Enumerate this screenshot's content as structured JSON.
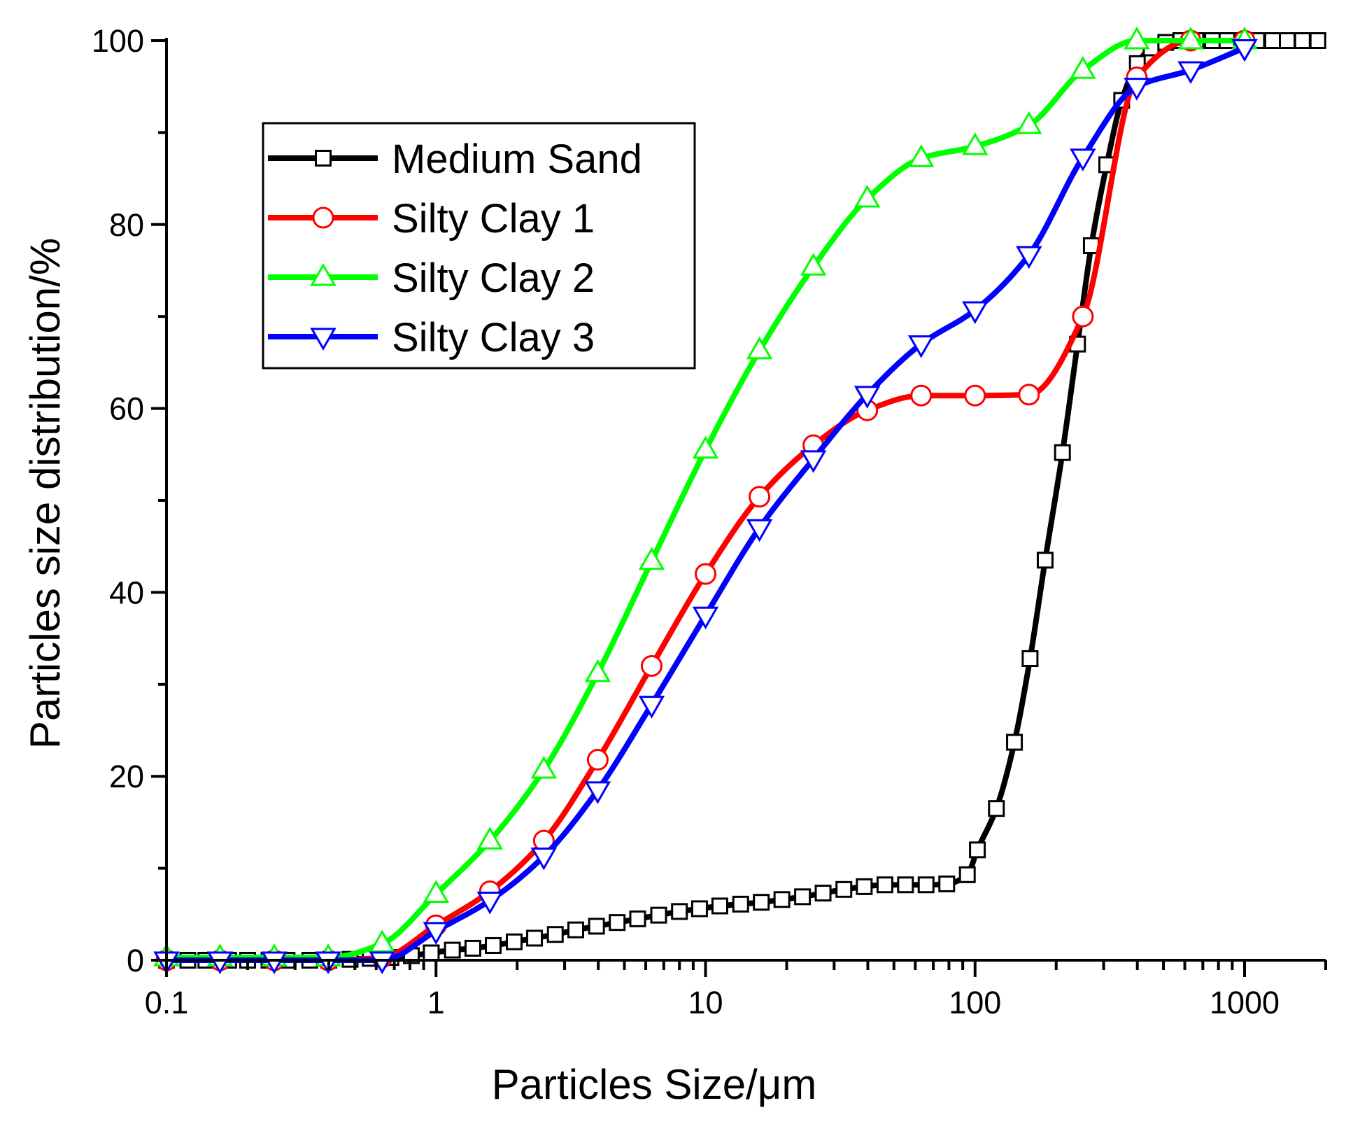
{
  "chart_data": {
    "type": "line",
    "title": "",
    "xlabel": "Particles Size/μm",
    "ylabel": "Particles size distribution/%",
    "x_scale": "log",
    "xlim": [
      0.1,
      2000
    ],
    "ylim": [
      0,
      100
    ],
    "x_ticks": [
      0.1,
      1,
      10,
      100,
      1000
    ],
    "x_tick_labels": [
      "0.1",
      "1",
      "10",
      "100",
      "1000"
    ],
    "y_ticks": [
      0,
      20,
      40,
      60,
      80,
      100
    ],
    "y_tick_labels": [
      "0",
      "20",
      "40",
      "60",
      "80",
      "100"
    ],
    "legend_position": "top-left",
    "grid": false,
    "series": [
      {
        "name": "Medium Sand",
        "color": "#000000",
        "marker": "square",
        "points": [
          [
            0.1,
            0
          ],
          [
            0.12,
            0
          ],
          [
            0.14,
            0
          ],
          [
            0.17,
            0
          ],
          [
            0.2,
            0
          ],
          [
            0.24,
            0
          ],
          [
            0.28,
            0
          ],
          [
            0.34,
            0
          ],
          [
            0.4,
            0
          ],
          [
            0.48,
            0.1
          ],
          [
            0.57,
            0.2
          ],
          [
            0.68,
            0.3
          ],
          [
            0.81,
            0.5
          ],
          [
            0.96,
            0.8
          ],
          [
            1.15,
            1.1
          ],
          [
            1.37,
            1.3
          ],
          [
            1.63,
            1.6
          ],
          [
            1.95,
            2.0
          ],
          [
            2.32,
            2.4
          ],
          [
            2.77,
            2.8
          ],
          [
            3.3,
            3.3
          ],
          [
            3.94,
            3.7
          ],
          [
            4.7,
            4.1
          ],
          [
            5.6,
            4.5
          ],
          [
            6.7,
            4.9
          ],
          [
            8.0,
            5.3
          ],
          [
            9.5,
            5.6
          ],
          [
            11.3,
            5.9
          ],
          [
            13.5,
            6.1
          ],
          [
            16.1,
            6.3
          ],
          [
            19.2,
            6.6
          ],
          [
            22.9,
            6.9
          ],
          [
            27.3,
            7.3
          ],
          [
            32.6,
            7.7
          ],
          [
            38.8,
            8.0
          ],
          [
            46.3,
            8.2
          ],
          [
            55.2,
            8.2
          ],
          [
            65.8,
            8.2
          ],
          [
            78.5,
            8.3
          ],
          [
            93.6,
            9.3
          ],
          [
            102,
            12
          ],
          [
            120,
            16.5
          ],
          [
            140,
            23.7
          ],
          [
            160,
            32.8
          ],
          [
            182,
            43.5
          ],
          [
            211,
            55.2
          ],
          [
            240,
            67
          ],
          [
            270,
            77.7
          ],
          [
            308,
            86.5
          ],
          [
            350,
            93.5
          ],
          [
            400,
            97.5
          ],
          [
            450,
            99.2
          ],
          [
            510,
            99.8
          ],
          [
            580,
            100
          ],
          [
            660,
            100
          ],
          [
            760,
            100
          ],
          [
            860,
            100
          ],
          [
            980,
            100
          ],
          [
            1110,
            100
          ],
          [
            1270,
            100
          ],
          [
            1440,
            100
          ],
          [
            1640,
            100
          ],
          [
            1870,
            100
          ]
        ]
      },
      {
        "name": "Silty Clay 1",
        "color": "#ff0000",
        "marker": "circle",
        "points": [
          [
            0.1,
            0
          ],
          [
            0.158,
            0
          ],
          [
            0.251,
            0
          ],
          [
            0.398,
            0
          ],
          [
            0.631,
            0.3
          ],
          [
            1,
            3.8
          ],
          [
            1.585,
            7.5
          ],
          [
            2.512,
            13
          ],
          [
            3.981,
            21.8
          ],
          [
            6.31,
            32
          ],
          [
            10,
            42
          ],
          [
            15.85,
            50.4
          ],
          [
            25.12,
            56
          ],
          [
            39.81,
            59.8
          ],
          [
            63.1,
            61.4
          ],
          [
            100,
            61.4
          ],
          [
            158.5,
            61.5
          ],
          [
            251.2,
            70
          ],
          [
            398.1,
            96
          ],
          [
            631,
            100
          ],
          [
            1000,
            100
          ]
        ]
      },
      {
        "name": "Silty Clay 2",
        "color": "#00ff00",
        "marker": "triangle-up",
        "points": [
          [
            0.1,
            0.3
          ],
          [
            0.158,
            0.3
          ],
          [
            0.251,
            0.3
          ],
          [
            0.398,
            0.3
          ],
          [
            0.631,
            1.8
          ],
          [
            1,
            7.2
          ],
          [
            1.585,
            13
          ],
          [
            2.512,
            20.7
          ],
          [
            3.981,
            31.2
          ],
          [
            6.31,
            43.4
          ],
          [
            10,
            55.5
          ],
          [
            15.85,
            66.3
          ],
          [
            25.12,
            75.4
          ],
          [
            39.81,
            82.8
          ],
          [
            63.1,
            87.2
          ],
          [
            100,
            88.5
          ],
          [
            158.5,
            90.8
          ],
          [
            251.2,
            96.8
          ],
          [
            398.1,
            100
          ],
          [
            631,
            100
          ],
          [
            1000,
            100
          ]
        ]
      },
      {
        "name": "Silty Clay 3",
        "color": "#0000ff",
        "marker": "triangle-down",
        "points": [
          [
            0.1,
            0
          ],
          [
            0.158,
            0
          ],
          [
            0.251,
            0
          ],
          [
            0.398,
            0
          ],
          [
            0.631,
            0
          ],
          [
            1,
            3.2
          ],
          [
            1.585,
            6.5
          ],
          [
            2.512,
            11.3
          ],
          [
            3.981,
            18.5
          ],
          [
            6.31,
            27.8
          ],
          [
            10,
            37.5
          ],
          [
            15.85,
            47
          ],
          [
            25.12,
            54.5
          ],
          [
            39.81,
            61.5
          ],
          [
            63.1,
            67
          ],
          [
            100,
            70.7
          ],
          [
            158.5,
            76.7
          ],
          [
            251.2,
            87.3
          ],
          [
            398.1,
            95
          ],
          [
            631,
            96.8
          ],
          [
            1000,
            99.2
          ]
        ]
      }
    ]
  }
}
